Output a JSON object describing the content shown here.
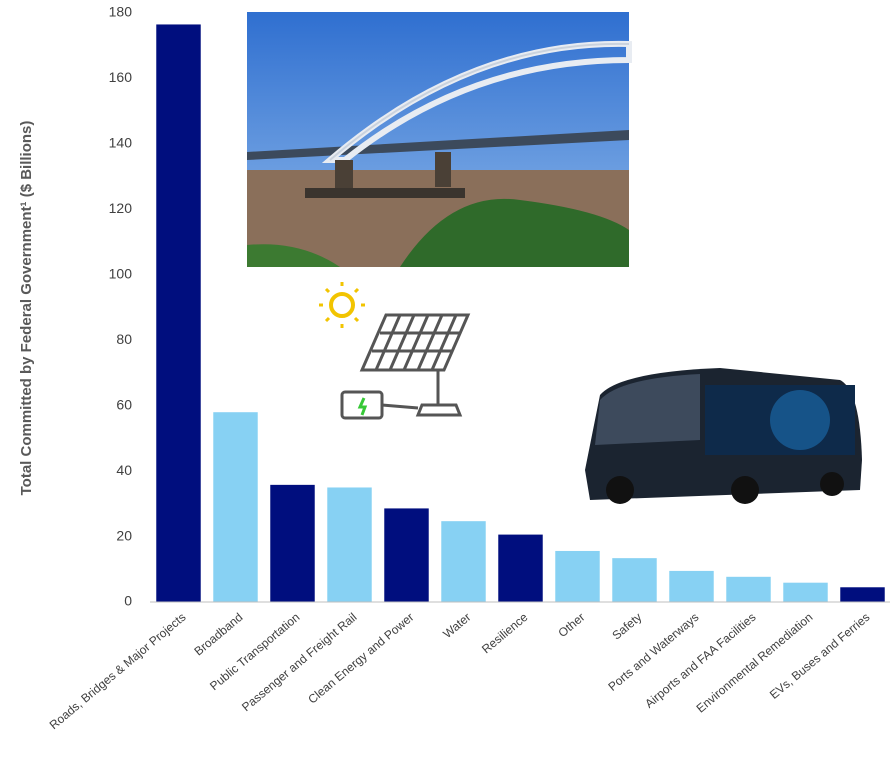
{
  "chart_data": {
    "type": "bar",
    "y_label": "Total Committed by Federal Government¹ ($ Billions)",
    "categories": [
      "Roads, Bridges & Major Projects",
      "Broadband",
      "Public Transportation",
      "Passenger and Freight Rail",
      "Clean Energy and Power",
      "Water",
      "Resilience",
      "Other",
      "Safety",
      "Ports and Waterways",
      "Airports and FAA Facilities",
      "Environmental Remediation",
      "EVs, Buses and Ferries"
    ],
    "values": [
      176.5,
      58,
      35.8,
      35,
      28.6,
      24.7,
      20.6,
      15.6,
      13.4,
      9.5,
      7.7,
      5.9,
      4.5
    ],
    "colors": [
      "#000e7e",
      "#87d1f3",
      "#000e7e",
      "#87d1f3",
      "#000e7e",
      "#87d1f3",
      "#000e7e",
      "#87d1f3",
      "#87d1f3",
      "#87d1f3",
      "#87d1f3",
      "#87d1f3",
      "#000e7e"
    ],
    "ylim": [
      0,
      180
    ],
    "yticks": [
      0,
      20,
      40,
      60,
      80,
      100,
      120,
      140,
      160,
      180
    ],
    "grid": false
  }
}
